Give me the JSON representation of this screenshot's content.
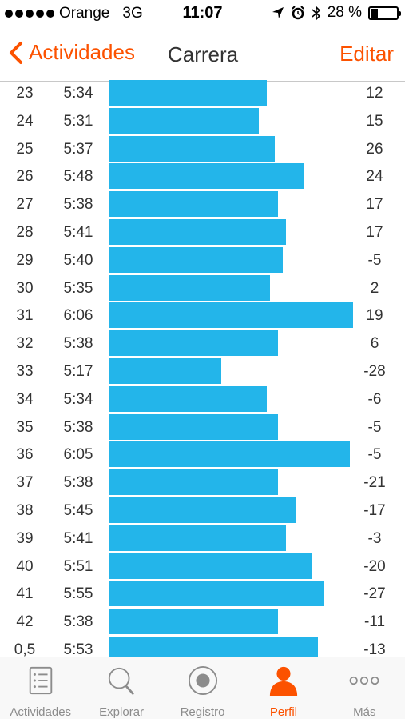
{
  "status": {
    "carrier": "Orange",
    "network": "3G",
    "time": "11:07",
    "battery": "28 %",
    "battery_level": 0.28
  },
  "nav": {
    "back_label": "Actividades",
    "title": "Carrera",
    "edit_label": "Editar"
  },
  "splits": [
    {
      "km": "23",
      "pace": "5:34",
      "pace_sec": 334,
      "elev": "12"
    },
    {
      "km": "24",
      "pace": "5:31",
      "pace_sec": 331,
      "elev": "15"
    },
    {
      "km": "25",
      "pace": "5:37",
      "pace_sec": 337,
      "elev": "26"
    },
    {
      "km": "26",
      "pace": "5:48",
      "pace_sec": 348,
      "elev": "24"
    },
    {
      "km": "27",
      "pace": "5:38",
      "pace_sec": 338,
      "elev": "17"
    },
    {
      "km": "28",
      "pace": "5:41",
      "pace_sec": 341,
      "elev": "17"
    },
    {
      "km": "29",
      "pace": "5:40",
      "pace_sec": 340,
      "elev": "-5"
    },
    {
      "km": "30",
      "pace": "5:35",
      "pace_sec": 335,
      "elev": "2"
    },
    {
      "km": "31",
      "pace": "6:06",
      "pace_sec": 366,
      "elev": "19"
    },
    {
      "km": "32",
      "pace": "5:38",
      "pace_sec": 338,
      "elev": "6"
    },
    {
      "km": "33",
      "pace": "5:17",
      "pace_sec": 317,
      "elev": "-28"
    },
    {
      "km": "34",
      "pace": "5:34",
      "pace_sec": 334,
      "elev": "-6"
    },
    {
      "km": "35",
      "pace": "5:38",
      "pace_sec": 338,
      "elev": "-5"
    },
    {
      "km": "36",
      "pace": "6:05",
      "pace_sec": 365,
      "elev": "-5"
    },
    {
      "km": "37",
      "pace": "5:38",
      "pace_sec": 338,
      "elev": "-21"
    },
    {
      "km": "38",
      "pace": "5:45",
      "pace_sec": 345,
      "elev": "-17"
    },
    {
      "km": "39",
      "pace": "5:41",
      "pace_sec": 341,
      "elev": "-3"
    },
    {
      "km": "40",
      "pace": "5:51",
      "pace_sec": 351,
      "elev": "-20"
    },
    {
      "km": "41",
      "pace": "5:55",
      "pace_sec": 355,
      "elev": "-27"
    },
    {
      "km": "42",
      "pace": "5:38",
      "pace_sec": 338,
      "elev": "-11"
    },
    {
      "km": "0,5",
      "pace": "5:53",
      "pace_sec": 353,
      "elev": "-13"
    }
  ],
  "tabs": [
    {
      "label": "Actividades",
      "icon": "list-icon",
      "active": false
    },
    {
      "label": "Explorar",
      "icon": "search-icon",
      "active": false
    },
    {
      "label": "Registro",
      "icon": "record-icon",
      "active": false
    },
    {
      "label": "Perfil",
      "icon": "profile-icon",
      "active": true
    },
    {
      "label": "Más",
      "icon": "more-icon",
      "active": false
    }
  ],
  "colors": {
    "accent": "#fc5200",
    "bar": "#23b5ea",
    "tab_inactive": "#8c8c8c"
  }
}
